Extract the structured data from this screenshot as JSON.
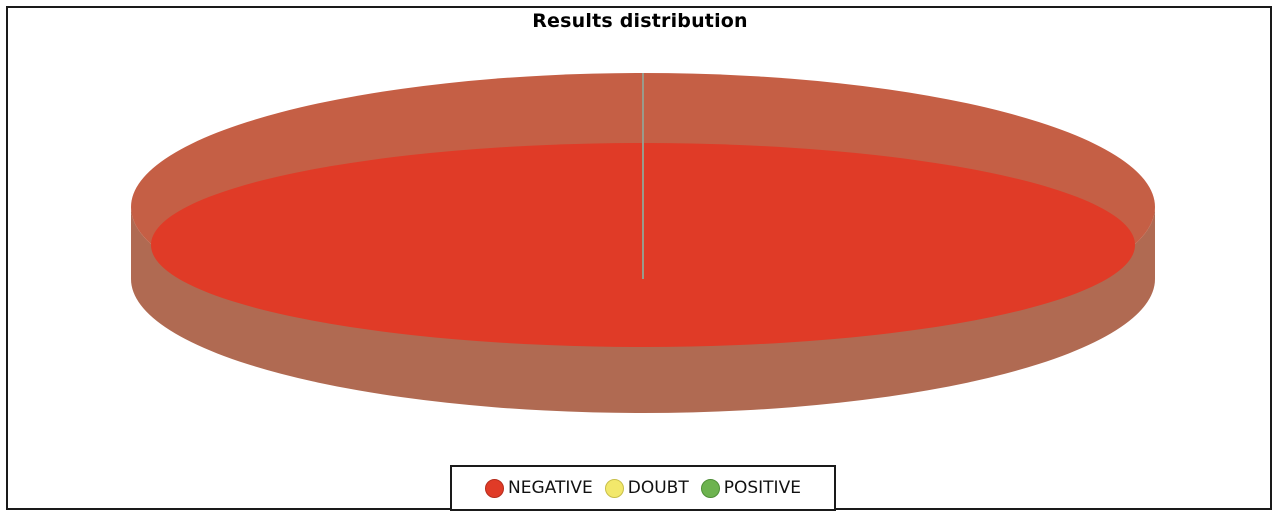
{
  "chart_data": {
    "type": "pie",
    "title": "Results distribution",
    "style": "3d",
    "legend_position": "bottom",
    "slices": [
      {
        "label": "NEGATIVE",
        "value": 100,
        "color": "#e03b27"
      },
      {
        "label": "DOUBT",
        "value": 0,
        "color": "#f2e86b"
      },
      {
        "label": "POSITIVE",
        "value": 0,
        "color": "#6db34f"
      }
    ]
  },
  "legend": [
    {
      "label": "NEGATIVE",
      "color": "#e03b27"
    },
    {
      "label": "DOUBT",
      "color": "#f2e86b"
    },
    {
      "label": "POSITIVE",
      "color": "#6db34f"
    }
  ]
}
